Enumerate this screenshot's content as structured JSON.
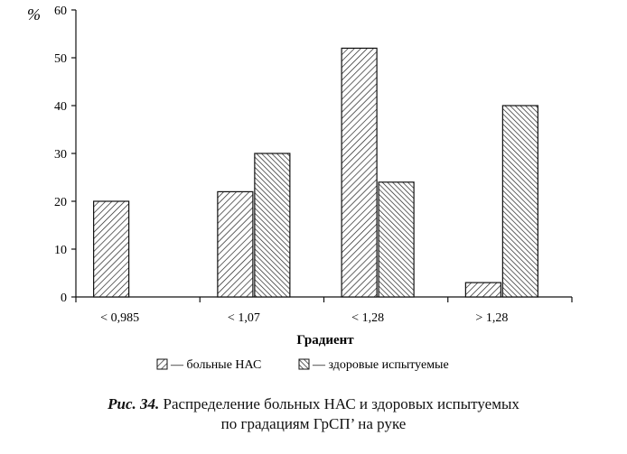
{
  "chart_data": {
    "type": "bar",
    "ylabel": "%",
    "xlabel": "Градиент",
    "categories": [
      "< 0,985",
      "< 1,07",
      "< 1,28",
      "> 1,28"
    ],
    "series": [
      {
        "name": "— больные НАС",
        "values": [
          20,
          22,
          52,
          3
        ]
      },
      {
        "name": "— здоровые испытуемые",
        "values": [
          0,
          30,
          24,
          40
        ]
      }
    ],
    "ylim": [
      0,
      60
    ],
    "yticks": [
      0,
      10,
      20,
      30,
      40,
      50,
      60
    ],
    "grid": false,
    "legend_position": "bottom"
  },
  "caption": {
    "lead": "Рис. 34.",
    "line1": "Распределение больных НАС и здоровых испытуемых",
    "line2": "по градациям ГрСП’ на руке"
  }
}
